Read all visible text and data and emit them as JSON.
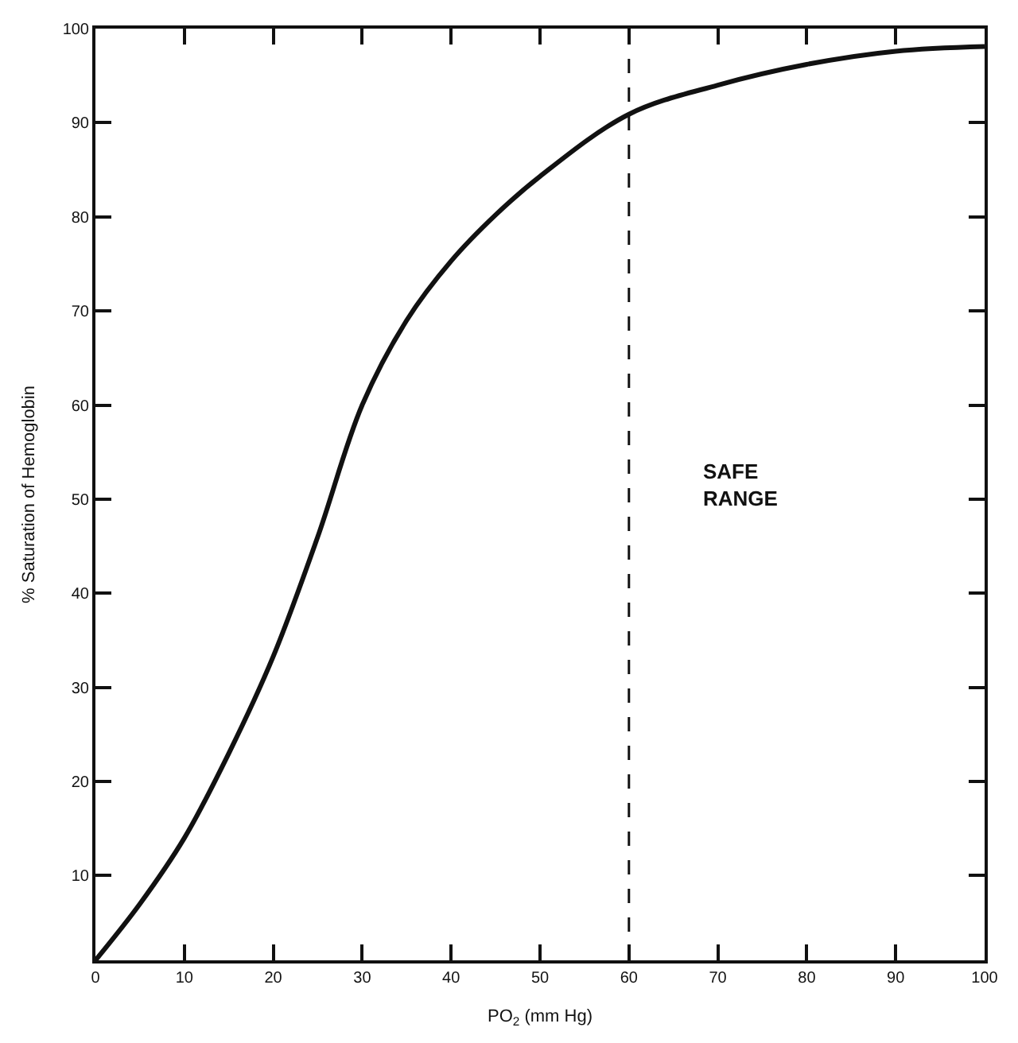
{
  "chart_data": {
    "type": "line",
    "xlabel": "PO$_{2}$ (mm Hg)",
    "ylabel": "% Saturation of Hemoglobin",
    "x": [
      0,
      5,
      10,
      15,
      20,
      25,
      30,
      35,
      40,
      45,
      50,
      60,
      70,
      80,
      90,
      100
    ],
    "series": [
      {
        "color": "#111111",
        "values": [
          1,
          7,
          14,
          23,
          33.3,
          46,
          60,
          69,
          75.3,
          80.2,
          84.3,
          90.9,
          94,
          96.2,
          97.6,
          98.1
        ]
      }
    ],
    "xlim": [
      0,
      100
    ],
    "ylim": [
      1,
      100
    ],
    "xticks": [
      0,
      10,
      20,
      30,
      40,
      50,
      60,
      70,
      80,
      90,
      100
    ],
    "yticks": [
      10,
      20,
      30,
      40,
      50,
      60,
      70,
      80,
      90,
      100
    ],
    "ref_lines": [
      {
        "axis": "x",
        "value": 60,
        "label": null,
        "color": "#111111",
        "line_style": "dashed"
      }
    ],
    "annotations": [
      "SAFE\nRANGE"
    ],
    "marker": "none",
    "line_style": "solid"
  }
}
